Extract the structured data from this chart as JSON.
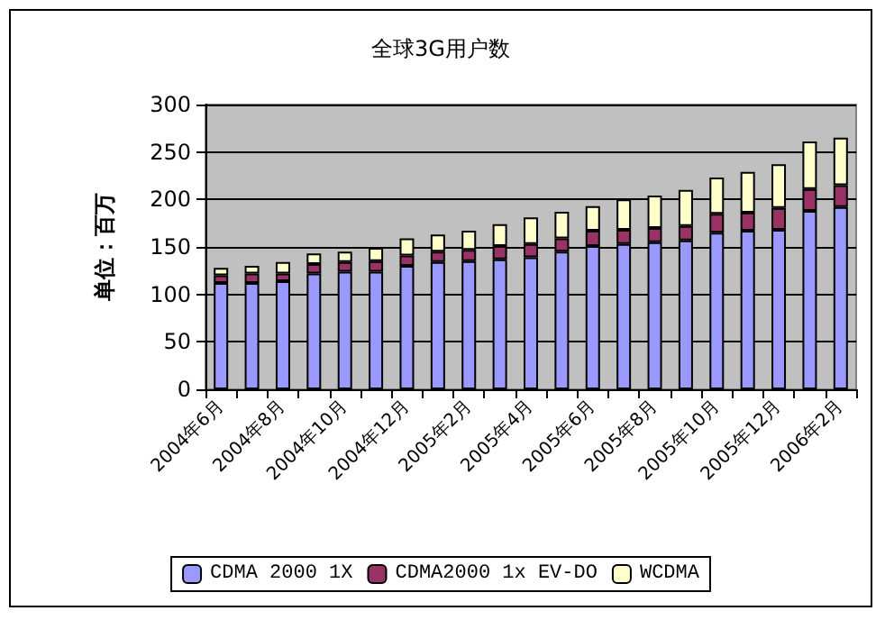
{
  "chart_data": {
    "type": "bar",
    "title": "全球3G用户数",
    "ylabel": "单位：百万",
    "stacked": true,
    "categories": [
      "2004年6月",
      null,
      "2004年8月",
      null,
      "2004年10月",
      null,
      "2004年12月",
      null,
      "2005年2月",
      null,
      "2005年4月",
      null,
      "2005年6月",
      null,
      "2005年8月",
      null,
      "2005年10月",
      null,
      "2005年12月",
      null,
      "2006年2月"
    ],
    "series": [
      {
        "name": "CDMA 2000 1X",
        "color": "#9999ff",
        "values": [
          112,
          112,
          114,
          122,
          124,
          124,
          130,
          134,
          135,
          137,
          139,
          145,
          151,
          153,
          155,
          157,
          165,
          167,
          168,
          188,
          192
        ]
      },
      {
        "name": "CDMA2000 1x EV-DO",
        "color": "#993366",
        "values": [
          8,
          10,
          8,
          10,
          10,
          11,
          11,
          11,
          12,
          14,
          14,
          14,
          16,
          15,
          15,
          15,
          20,
          19,
          23,
          23,
          23
        ]
      },
      {
        "name": "WCDMA",
        "color": "#ffffcc",
        "values": [
          8,
          8,
          12,
          11,
          11,
          14,
          18,
          18,
          20,
          23,
          28,
          28,
          26,
          32,
          34,
          38,
          38,
          43,
          46,
          50,
          50
        ]
      }
    ],
    "ylim": [
      0,
      300
    ],
    "yticks": [
      0,
      50,
      100,
      150,
      200,
      250,
      300
    ],
    "grid": "y",
    "legend": "bottom"
  }
}
